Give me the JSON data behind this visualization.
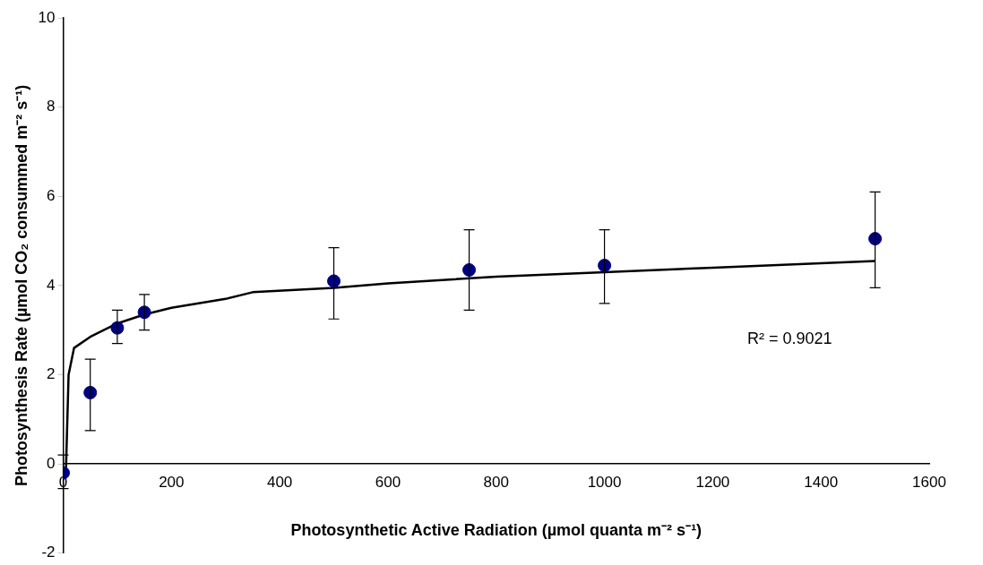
{
  "chart_data": {
    "type": "scatter",
    "xlabel": "Photosynthetic Active Radiation (µmol quanta m⁻² s⁻¹)",
    "ylabel": "Photosynthesis Rate (µmol CO₂ consummed m⁻² s⁻¹)",
    "xlim": [
      0,
      1600
    ],
    "xticks": [
      0,
      200,
      400,
      600,
      800,
      1000,
      1200,
      1400,
      1600
    ],
    "ylim": [
      -2,
      10
    ],
    "yticks": [
      -2,
      0,
      2,
      4,
      6,
      8,
      10
    ],
    "grid": false,
    "legend": false,
    "marker": "circle",
    "series": [
      {
        "color": "#00007f",
        "x": [
          0,
          50,
          100,
          150,
          500,
          750,
          1000,
          1500
        ],
        "values": [
          -0.2,
          1.6,
          3.05,
          3.4,
          4.1,
          4.35,
          4.45,
          5.05
        ],
        "errors": [
          [
            -0.55,
            0.2
          ],
          [
            0.75,
            2.35
          ],
          [
            2.7,
            3.45
          ],
          [
            3.0,
            3.8
          ],
          [
            3.25,
            4.85
          ],
          [
            3.45,
            5.25
          ],
          [
            3.6,
            5.25
          ],
          [
            3.95,
            6.1
          ]
        ]
      },
      {
        "type": "line",
        "color": "#000000",
        "marker": "none",
        "line_style": "solid",
        "x": [
          5,
          10,
          20,
          50,
          100,
          150,
          200,
          300,
          350,
          500,
          600,
          800,
          1000,
          1200,
          1500
        ],
        "values": [
          -0.2,
          2.0,
          2.6,
          2.85,
          3.15,
          3.35,
          3.5,
          3.7,
          3.85,
          3.95,
          4.05,
          4.2,
          4.3,
          4.4,
          4.55
        ]
      }
    ],
    "annotations": [
      "R² = 0.9021"
    ]
  }
}
